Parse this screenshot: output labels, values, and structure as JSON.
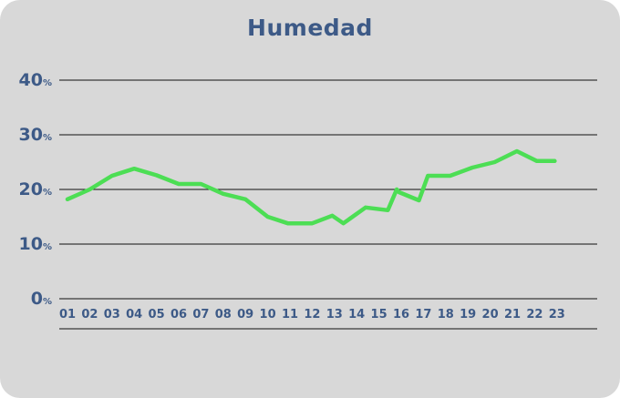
{
  "chart_data": {
    "type": "line",
    "title": "Humedad",
    "y_unit": "%",
    "ylim": [
      0,
      40
    ],
    "y_ticks": [
      0,
      10,
      20,
      30,
      40
    ],
    "grid": true,
    "line_color": "#4cde54",
    "text_color": "#3d5a87",
    "x_tick_labels": [
      "01",
      "02",
      "03",
      "04",
      "05",
      "06",
      "07",
      "08",
      "09",
      "10",
      "11",
      "12",
      "13",
      "14",
      "15",
      "16",
      "17",
      "18",
      "19",
      "20",
      "21",
      "22",
      "23"
    ],
    "series": [
      {
        "x": [
          0.5,
          1.5,
          2.5,
          3.5,
          4.5,
          5.5,
          6.5,
          7.5,
          8.5,
          9.5,
          10.4,
          11.5,
          12.4,
          12.9,
          13.9,
          14.9,
          15.3,
          15.4,
          16.3,
          16.7,
          17.7,
          18.7,
          19.7,
          20.7,
          21.6,
          22.4
        ],
        "y": [
          18.2,
          20,
          22.5,
          23.8,
          22.6,
          21,
          21,
          19.2,
          18.2,
          15,
          13.8,
          13.8,
          15.2,
          13.8,
          16.7,
          16.2,
          20,
          19.5,
          18,
          22.5,
          22.5,
          24,
          25,
          27,
          25.2,
          25.2
        ]
      }
    ]
  }
}
